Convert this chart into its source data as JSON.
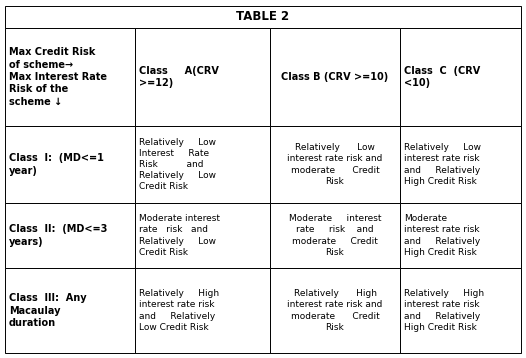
{
  "title_text": "TABLE 2",
  "figsize": [
    5.26,
    3.58
  ],
  "dpi": 100,
  "col0_header": "Max Credit Risk\nof scheme→\nMax Interest Rate\nRisk of the\nscheme ↓",
  "col1_header": "Class     A(CRV\n>=12)",
  "col2_header": "Class B (CRV >=10)",
  "col3_header": "Class  C  (CRV\n<10)",
  "row_labels": [
    "Class  I:  (MD<=1\nyear)",
    "Class  II:  (MD<=3\nyears)",
    "Class  III:  Any\nMacaulay\nduration"
  ],
  "cells": [
    [
      "Relatively     Low\nInterest     Rate\nRisk          and\nRelatively     Low\nCredit Risk",
      "Relatively      Low\ninterest rate risk and\nmoderate      Credit\nRisk",
      "Relatively     Low\ninterest rate risk\nand     Relatively\nHigh Credit Risk"
    ],
    [
      "Moderate interest\nrate   risk   and\nRelatively     Low\nCredit Risk",
      "Moderate     interest\nrate     risk    and\nmoderate     Credit\nRisk",
      "Moderate\ninterest rate risk\nand     Relatively\nHigh Credit Risk"
    ],
    [
      "Relatively     High\ninterest rate risk\nand     Relatively\nLow Credit Risk",
      "Relatively      High\ninterest rate risk and\nmoderate      Credit\nRisk",
      "Relatively     High\ninterest rate risk\nand     Relatively\nHigh Credit Risk"
    ]
  ],
  "title_fontsize": 8.5,
  "header_fontsize": 7.0,
  "label_fontsize": 7.0,
  "cell_fontsize": 6.5,
  "lw": 0.7
}
